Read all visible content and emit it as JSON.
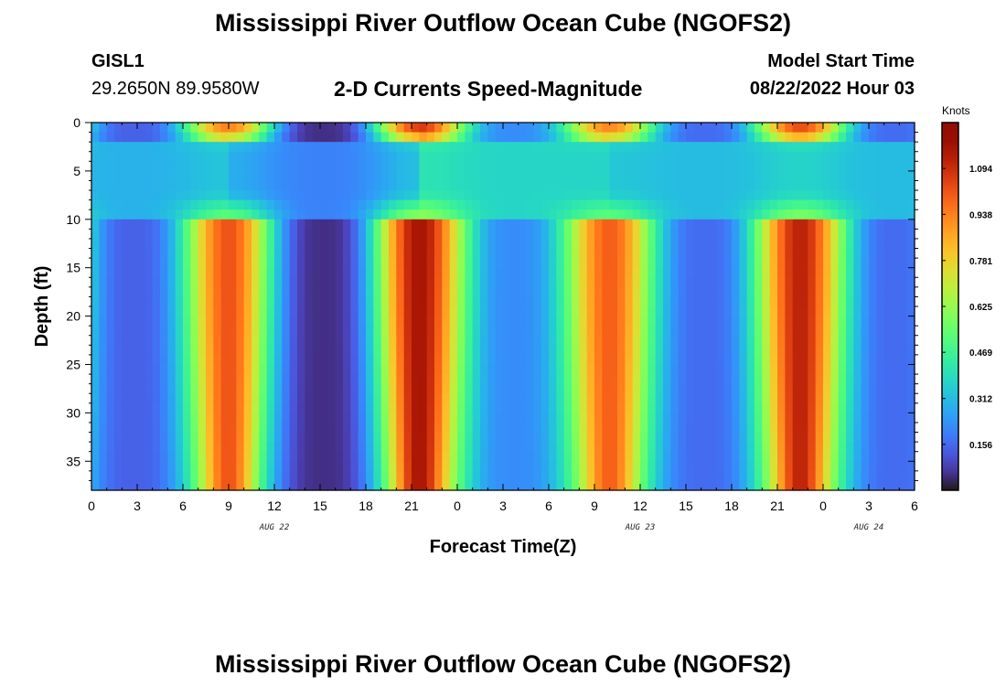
{
  "page": {
    "title": "Mississippi River Outflow Ocean Cube (NGOFS2)",
    "station": "GISL1",
    "coords": "29.2650N  89.9580W",
    "subtitle": "2-D Currents Speed-Magnitude",
    "model_start_label": "Model Start Time",
    "model_start_value": "08/22/2022 Hour 03",
    "bottom_title": "Mississippi River Outflow Ocean Cube (NGOFS2)"
  },
  "chart_data": {
    "type": "heatmap",
    "xlabel": "Forecast Time(Z)",
    "ylabel": "Depth (ft)",
    "x_range_hours": [
      0,
      54
    ],
    "x_ticks": [
      {
        "h": 0,
        "label": "0"
      },
      {
        "h": 3,
        "label": "3"
      },
      {
        "h": 6,
        "label": "6"
      },
      {
        "h": 9,
        "label": "9"
      },
      {
        "h": 12,
        "label": "12"
      },
      {
        "h": 15,
        "label": "15"
      },
      {
        "h": 18,
        "label": "18"
      },
      {
        "h": 21,
        "label": "21"
      },
      {
        "h": 24,
        "label": "0"
      },
      {
        "h": 27,
        "label": "3"
      },
      {
        "h": 30,
        "label": "6"
      },
      {
        "h": 33,
        "label": "9"
      },
      {
        "h": 36,
        "label": "12"
      },
      {
        "h": 39,
        "label": "15"
      },
      {
        "h": 42,
        "label": "18"
      },
      {
        "h": 45,
        "label": "21"
      },
      {
        "h": 48,
        "label": "0"
      },
      {
        "h": 51,
        "label": "3"
      },
      {
        "h": 54,
        "label": "6"
      }
    ],
    "date_labels": [
      {
        "h": 12,
        "label": "AUG 22"
      },
      {
        "h": 36,
        "label": "AUG 23"
      },
      {
        "h": 51,
        "label": "AUG 24"
      }
    ],
    "ylim": [
      0,
      38
    ],
    "y_ticks": [
      0,
      5,
      10,
      15,
      20,
      25,
      30,
      35
    ],
    "colorbar": {
      "unit": "Knots",
      "range": [
        0.0,
        1.25
      ],
      "ticks": [
        "1.094",
        "0.938",
        "0.781",
        "0.625",
        "0.469",
        "0.312",
        "0.156"
      ],
      "tick_values": [
        1.094,
        0.938,
        0.781,
        0.625,
        0.469,
        0.312,
        0.156
      ],
      "colormap": "turbo"
    },
    "speed_peaks_knots": [
      {
        "h": 9.0,
        "peak": 1.02
      },
      {
        "h": 21.5,
        "peak": 1.16
      },
      {
        "h": 34.0,
        "peak": 1.0
      },
      {
        "h": 46.5,
        "peak": 1.12
      }
    ],
    "speed_minima_knots": [
      {
        "h": 3.0,
        "min": 0.14
      },
      {
        "h": 15.3,
        "min": 0.05
      },
      {
        "h": 27.8,
        "min": 0.22
      },
      {
        "h": 40.3,
        "min": 0.16
      }
    ]
  }
}
